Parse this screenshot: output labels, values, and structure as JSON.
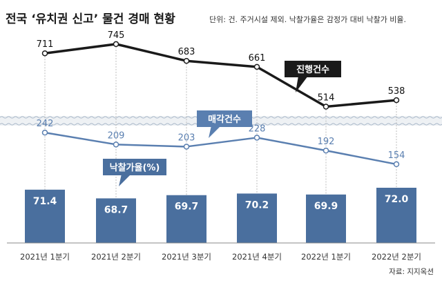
{
  "header": {
    "title": "전국 ‘유치권 신고’ 물건 경매 현황",
    "subtitle": "단위: 건. 주거시설 제외. 낙찰가율은 감정가 대비 낙찰가 비율."
  },
  "source": "자료: 지지옥션",
  "colors": {
    "line_total": "#1a1a1a",
    "line_sold": "#5a7fb0",
    "bar": "#4a6f9e",
    "callout_sold": "#5a7fb0",
    "callout_total": "#1a1a1a",
    "callout_rate": "#4a6f9e",
    "band": "#eef1f4",
    "grid": "#bbbbbb"
  },
  "chart_data": {
    "type": "bar",
    "categories": [
      "2021년 1분기",
      "2021년 2분기",
      "2021년 3분기",
      "2021년 4분기",
      "2022년 1분기",
      "2022년 2분기"
    ],
    "series": [
      {
        "name": "진행건수",
        "type": "line",
        "values": [
          711,
          745,
          683,
          661,
          514,
          538
        ]
      },
      {
        "name": "매각건수",
        "type": "line",
        "values": [
          242,
          209,
          203,
          228,
          192,
          154
        ]
      },
      {
        "name": "낙찰가율(%)",
        "type": "bar",
        "values": [
          71.4,
          68.7,
          69.7,
          70.2,
          69.9,
          72.0
        ]
      }
    ],
    "title": "전국 ‘유치권 신고’ 물건 경매 현황",
    "xlabel": "",
    "ylabel": "",
    "axis_break": true,
    "grid": "vertical dashed lines at each category"
  }
}
